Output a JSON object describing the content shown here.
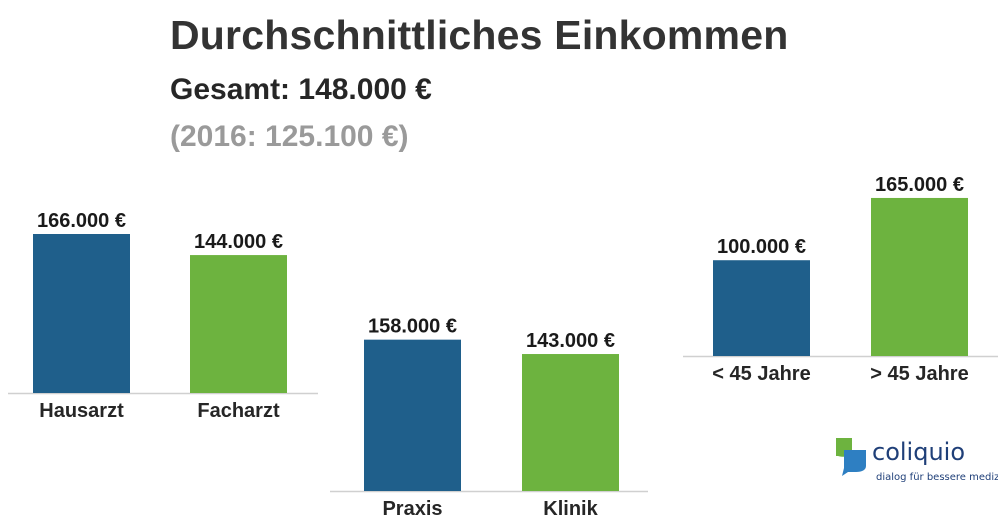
{
  "header": {
    "title": "Durchschnittliches Einkommen",
    "subtitle": "Gesamt: 148.000 €",
    "note": "(2016: 125.100 €)"
  },
  "colors": {
    "blue": "#1f5f8b",
    "green": "#6db33f",
    "baseline": "#d0d0d0",
    "logo_blue": "#1f3f78",
    "logo_green": "#6db33f"
  },
  "chart_data": [
    {
      "type": "bar",
      "categories": [
        "Hausarzt",
        "Facharzt"
      ],
      "values": [
        166000,
        144000
      ],
      "value_labels": [
        "166.000 €",
        "144.000 €"
      ],
      "colors": [
        "#1f5f8b",
        "#6db33f"
      ],
      "grid": false
    },
    {
      "type": "bar",
      "categories": [
        "Praxis",
        "Klinik"
      ],
      "values": [
        158000,
        143000
      ],
      "value_labels": [
        "158.000 €",
        "143.000 €"
      ],
      "colors": [
        "#1f5f8b",
        "#6db33f"
      ],
      "grid": false
    },
    {
      "type": "bar",
      "categories": [
        "< 45 Jahre",
        "> 45 Jahre"
      ],
      "values": [
        100000,
        165000
      ],
      "value_labels": [
        "100.000 €",
        "165.000 €"
      ],
      "colors": [
        "#1f5f8b",
        "#6db33f"
      ],
      "grid": false
    }
  ],
  "logo": {
    "name": "coliquio",
    "tagline": "dialog für bessere medizin",
    "icon": "speech-bubble-leaf-icon"
  }
}
